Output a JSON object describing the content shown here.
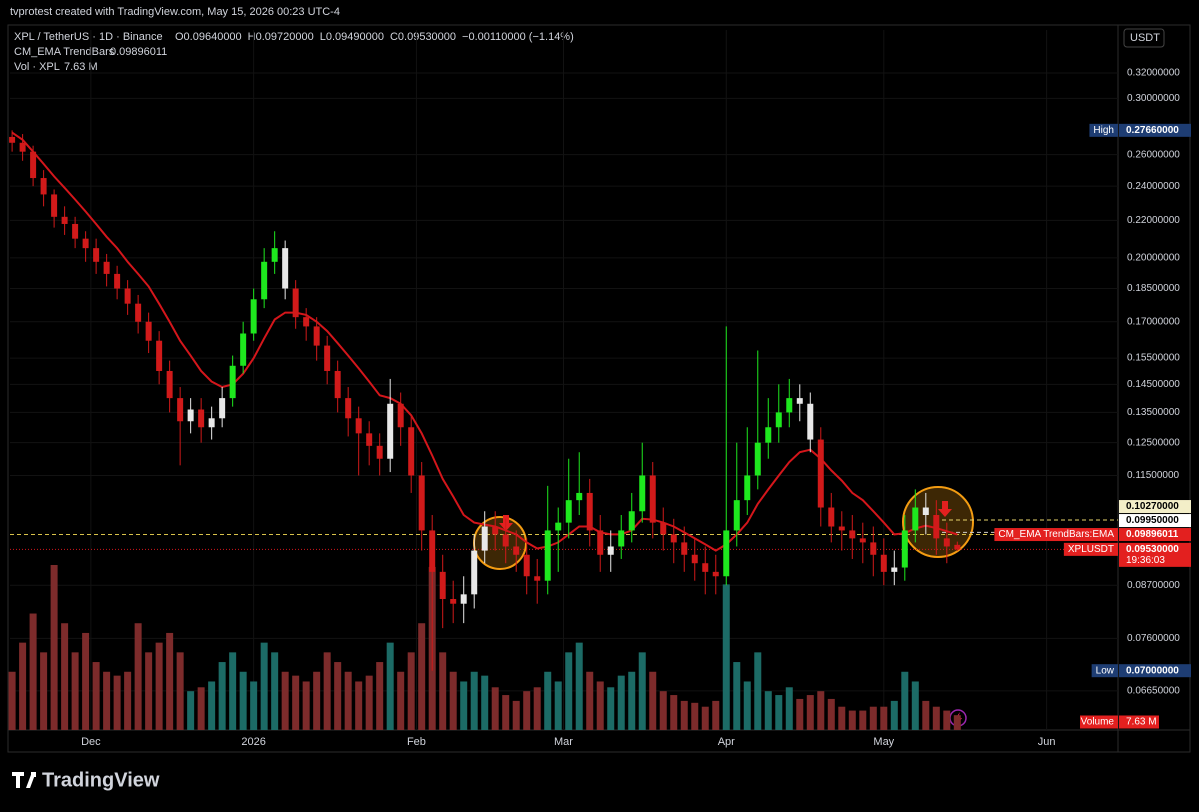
{
  "header": {
    "credit": "tvprotest created with TradingView.com, May 15, 2026 00:23 UTC-4",
    "symbol": "XPL / TetherUS · 1D · Binance",
    "ohlc": [
      "O0.09640000",
      "H0.09720000",
      "L0.09490000",
      "C0.09530000",
      "−0.00110000 (−1.14%)"
    ],
    "indicator": "CM_EMA TrendBars",
    "indicator_value": "0.09896011",
    "volume": "Vol · XPL",
    "volume_value": "7.63 M"
  },
  "currency": "USDT",
  "brand": "TradingView",
  "chart_data": {
    "type": "candlestick",
    "log_scale": true,
    "grid": true,
    "ylim": [
      0.0602,
      0.357
    ],
    "yticks": [
      {
        "value": 0.32,
        "label": "0.32000000"
      },
      {
        "value": 0.3,
        "label": "0.30000000"
      },
      {
        "value": 0.26,
        "label": "0.26000000"
      },
      {
        "value": 0.24,
        "label": "0.24000000"
      },
      {
        "value": 0.22,
        "label": "0.22000000"
      },
      {
        "value": 0.2,
        "label": "0.20000000"
      },
      {
        "value": 0.185,
        "label": "0.18500000"
      },
      {
        "value": 0.17,
        "label": "0.17000000"
      },
      {
        "value": 0.155,
        "label": "0.15500000"
      },
      {
        "value": 0.145,
        "label": "0.14500000"
      },
      {
        "value": 0.135,
        "label": "0.13500000"
      },
      {
        "value": 0.125,
        "label": "0.12500000"
      },
      {
        "value": 0.115,
        "label": "0.11500000"
      },
      {
        "value": 0.087,
        "label": "0.08700000"
      },
      {
        "value": 0.076,
        "label": "0.07600000"
      },
      {
        "value": 0.0665,
        "label": "0.06650000"
      }
    ],
    "xlim": [
      -0.2,
      105.3
    ],
    "xticks": [
      {
        "value": 7.5,
        "label": "Dec"
      },
      {
        "value": 23,
        "label": "2026"
      },
      {
        "value": 38.5,
        "label": "Feb"
      },
      {
        "value": 52.5,
        "label": "Mar"
      },
      {
        "value": 68,
        "label": "Apr"
      },
      {
        "value": 83,
        "label": "May"
      },
      {
        "value": 98.5,
        "label": "Jun"
      }
    ],
    "up_color": "#1ee81e",
    "down_color": "#d11a1a",
    "neutral_color": "#e8e8e8",
    "open": [
      0.272,
      0.268,
      0.262,
      0.245,
      0.235,
      0.222,
      0.218,
      0.21,
      0.205,
      0.198,
      0.192,
      0.185,
      0.178,
      0.17,
      0.162,
      0.15,
      0.14,
      0.132,
      0.136,
      0.13,
      0.133,
      0.14,
      0.152,
      0.165,
      0.18,
      0.198,
      0.205,
      0.185,
      0.172,
      0.168,
      0.16,
      0.15,
      0.14,
      0.133,
      0.128,
      0.124,
      0.12,
      0.138,
      0.13,
      0.115,
      0.1,
      0.09,
      0.084,
      0.083,
      0.085,
      0.095,
      0.101,
      0.099,
      0.096,
      0.094,
      0.089,
      0.088,
      0.1,
      0.102,
      0.108,
      0.11,
      0.1,
      0.094,
      0.096,
      0.1,
      0.105,
      0.115,
      0.102,
      0.099,
      0.097,
      0.094,
      0.092,
      0.09,
      0.089,
      0.1,
      0.108,
      0.115,
      0.125,
      0.13,
      0.135,
      0.14,
      0.138,
      0.126,
      0.106,
      0.101,
      0.1,
      0.098,
      0.097,
      0.094,
      0.09,
      0.091,
      0.1,
      0.106,
      0.104,
      0.098,
      0.0964
    ],
    "high": [
      0.2766,
      0.274,
      0.266,
      0.25,
      0.238,
      0.228,
      0.222,
      0.214,
      0.21,
      0.202,
      0.196,
      0.189,
      0.182,
      0.174,
      0.166,
      0.154,
      0.144,
      0.14,
      0.14,
      0.137,
      0.144,
      0.156,
      0.17,
      0.185,
      0.205,
      0.214,
      0.209,
      0.189,
      0.176,
      0.172,
      0.164,
      0.154,
      0.144,
      0.137,
      0.132,
      0.128,
      0.147,
      0.142,
      0.134,
      0.119,
      0.104,
      0.094,
      0.088,
      0.089,
      0.099,
      0.105,
      0.105,
      0.103,
      0.1,
      0.098,
      0.093,
      0.112,
      0.106,
      0.12,
      0.122,
      0.114,
      0.104,
      0.1,
      0.104,
      0.11,
      0.125,
      0.119,
      0.106,
      0.103,
      0.101,
      0.098,
      0.096,
      0.094,
      0.168,
      0.125,
      0.13,
      0.158,
      0.14,
      0.145,
      0.147,
      0.145,
      0.142,
      0.13,
      0.11,
      0.105,
      0.104,
      0.102,
      0.101,
      0.098,
      0.095,
      0.104,
      0.111,
      0.11,
      0.108,
      0.102,
      0.0972
    ],
    "low": [
      0.262,
      0.256,
      0.24,
      0.228,
      0.216,
      0.212,
      0.205,
      0.198,
      0.192,
      0.186,
      0.18,
      0.173,
      0.165,
      0.157,
      0.145,
      0.135,
      0.118,
      0.128,
      0.125,
      0.126,
      0.13,
      0.137,
      0.149,
      0.162,
      0.176,
      0.192,
      0.18,
      0.167,
      0.162,
      0.154,
      0.145,
      0.135,
      0.127,
      0.115,
      0.118,
      0.115,
      0.116,
      0.124,
      0.11,
      0.095,
      0.07,
      0.078,
      0.079,
      0.079,
      0.082,
      0.092,
      0.095,
      0.092,
      0.09,
      0.085,
      0.083,
      0.085,
      0.09,
      0.098,
      0.104,
      0.096,
      0.09,
      0.09,
      0.093,
      0.097,
      0.102,
      0.098,
      0.095,
      0.092,
      0.09,
      0.088,
      0.085,
      0.085,
      0.087,
      0.096,
      0.104,
      0.111,
      0.12,
      0.125,
      0.13,
      0.132,
      0.122,
      0.101,
      0.097,
      0.095,
      0.093,
      0.092,
      0.089,
      0.087,
      0.087,
      0.088,
      0.097,
      0.099,
      0.094,
      0.092,
      0.0949
    ],
    "close": [
      0.268,
      0.262,
      0.245,
      0.235,
      0.222,
      0.218,
      0.21,
      0.205,
      0.198,
      0.192,
      0.185,
      0.178,
      0.17,
      0.162,
      0.15,
      0.14,
      0.132,
      0.136,
      0.13,
      0.133,
      0.14,
      0.152,
      0.165,
      0.18,
      0.198,
      0.205,
      0.185,
      0.172,
      0.168,
      0.16,
      0.15,
      0.14,
      0.133,
      0.128,
      0.124,
      0.12,
      0.138,
      0.13,
      0.115,
      0.1,
      0.09,
      0.084,
      0.083,
      0.085,
      0.095,
      0.101,
      0.099,
      0.096,
      0.094,
      0.089,
      0.088,
      0.1,
      0.102,
      0.108,
      0.11,
      0.1,
      0.094,
      0.096,
      0.1,
      0.105,
      0.115,
      0.102,
      0.099,
      0.097,
      0.094,
      0.092,
      0.09,
      0.089,
      0.1,
      0.108,
      0.115,
      0.125,
      0.13,
      0.135,
      0.14,
      0.138,
      0.126,
      0.106,
      0.101,
      0.1,
      0.098,
      0.097,
      0.094,
      0.09,
      0.091,
      0.1,
      0.106,
      0.104,
      0.098,
      0.096,
      0.0953
    ],
    "ema": {
      "color": "#d4161b",
      "values": [
        0.275,
        0.27,
        0.262,
        0.254,
        0.246,
        0.239,
        0.232,
        0.225,
        0.218,
        0.211,
        0.205,
        0.198,
        0.192,
        0.186,
        0.178,
        0.17,
        0.162,
        0.156,
        0.15,
        0.146,
        0.144,
        0.145,
        0.149,
        0.155,
        0.163,
        0.171,
        0.174,
        0.174,
        0.173,
        0.17,
        0.166,
        0.161,
        0.156,
        0.151,
        0.146,
        0.141,
        0.14,
        0.138,
        0.134,
        0.128,
        0.121,
        0.114,
        0.109,
        0.104,
        0.102,
        0.1015,
        0.101,
        0.1,
        0.099,
        0.097,
        0.0955,
        0.096,
        0.097,
        0.099,
        0.101,
        0.101,
        0.0995,
        0.099,
        0.099,
        0.1,
        0.103,
        0.1028,
        0.102,
        0.101,
        0.0995,
        0.098,
        0.0965,
        0.095,
        0.0965,
        0.099,
        0.102,
        0.107,
        0.111,
        0.115,
        0.119,
        0.122,
        0.1228,
        0.12,
        0.1165,
        0.1135,
        0.11,
        0.108,
        0.105,
        0.102,
        0.099,
        0.0993,
        0.1005,
        0.1012,
        0.1006,
        0.0998,
        0.09896011
      ]
    },
    "volume": {
      "label": "Volume",
      "value_label": "7.63 M",
      "up_color": "#1c6b66",
      "down_color": "#7d2b2b",
      "values": [
        30,
        45,
        60,
        40,
        85,
        55,
        40,
        50,
        35,
        30,
        28,
        30,
        55,
        40,
        45,
        50,
        40,
        20,
        22,
        25,
        35,
        40,
        30,
        25,
        45,
        40,
        30,
        28,
        25,
        30,
        40,
        35,
        30,
        25,
        28,
        35,
        45,
        30,
        40,
        55,
        84,
        40,
        30,
        25,
        30,
        28,
        22,
        18,
        15,
        20,
        22,
        30,
        25,
        40,
        45,
        30,
        25,
        22,
        28,
        30,
        40,
        30,
        20,
        18,
        15,
        14,
        12,
        15,
        75,
        35,
        25,
        40,
        20,
        18,
        22,
        16,
        18,
        20,
        16,
        12,
        10,
        10,
        12,
        12,
        15,
        30,
        25,
        15,
        12,
        10,
        7.63
      ]
    },
    "price_labels": [
      {
        "name": "High",
        "value": 0.2766,
        "label": "0.27660000",
        "color": "#1e3d73",
        "text_color": "#ffffff"
      },
      {
        "value": 0.1027,
        "label": "0.10270000",
        "color": "#f3eec8",
        "text_color": "#000000",
        "line_color": "#e8d36a"
      },
      {
        "value": 0.0995,
        "label": "0.09950000",
        "color": "#ffffff",
        "text_color": "#000000",
        "line_color": "#cfcfcf"
      },
      {
        "name": "CM_EMA TrendBars:EMA",
        "value": 0.09896011,
        "label": "0.09896011",
        "color": "#e3201f",
        "text_color": "#ffffff",
        "line_color": "#d8c24a",
        "full": true
      },
      {
        "name": "XPLUSDT",
        "value": 0.0953,
        "label": "0.09530000",
        "sub": "19:36:03",
        "color": "#e3201f",
        "text_color": "#ffffff",
        "line_color": "#d4161b",
        "full": true
      },
      {
        "name": "Low",
        "value": 0.07,
        "label": "0.07000000",
        "color": "#1e3d73",
        "text_color": "#ffffff"
      }
    ]
  }
}
